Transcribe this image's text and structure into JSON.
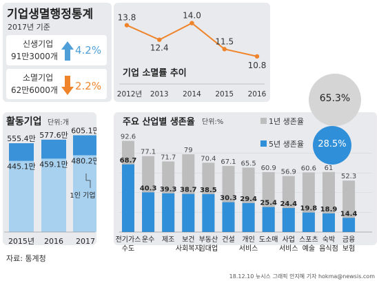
{
  "header": {
    "title": "기업생멸행정통계",
    "subtitle": "2017년 기준"
  },
  "summary": {
    "new": {
      "label": "신생기업",
      "count": "91만3000개",
      "rate": "4.2%"
    },
    "closed": {
      "label": "소멸기업",
      "count": "62만6000개",
      "rate": "2.2%"
    }
  },
  "colors": {
    "up": "#4e9fd8",
    "down": "#f0842a",
    "line": "#f0842a",
    "gray_bar": "#bdbdbd",
    "blue_bar": "#2f8fd8",
    "light_blue": "#a8d1ef",
    "mid_blue": "#3a93d8",
    "panel": "#e8eaee"
  },
  "chart_data": [
    {
      "type": "line",
      "title": "기업 소멸률 추이",
      "x": [
        "2012년",
        "2013",
        "2014",
        "2015",
        "2016"
      ],
      "values": [
        13.8,
        12.4,
        14.0,
        11.5,
        10.8
      ],
      "labels": [
        "13.8",
        "12.4",
        "14.0",
        "11.5",
        "10.8"
      ],
      "ylim": [
        10,
        14.5
      ]
    },
    {
      "type": "bar",
      "title": "활동기업",
      "unit": "단위:개",
      "categories": [
        "2015년",
        "2016",
        "2017"
      ],
      "series": [
        {
          "values": [
            555.4,
            577.6,
            605.1
          ],
          "labels": [
            "555.4만",
            "577.6만",
            "605.1만"
          ]
        },
        {
          "values": [
            445.1,
            459.1,
            480.2
          ],
          "labels": [
            "445.1만",
            "459.1만",
            "480.2만"
          ]
        }
      ],
      "annotation": "1인 기업",
      "ylim": [
        0,
        620
      ]
    },
    {
      "type": "bar",
      "title": "주요 산업별 생존율",
      "unit": "단위:%",
      "categories": [
        [
          "전기가스",
          "수도"
        ],
        [
          "운수"
        ],
        [
          "제조"
        ],
        [
          "보건",
          "사회복지"
        ],
        [
          "부동산",
          "임대업"
        ],
        [
          "건설"
        ],
        [
          "개인",
          "서비스"
        ],
        [
          "도소매"
        ],
        [
          "사업",
          "서비스"
        ],
        [
          "스포츠",
          "예술"
        ],
        [
          "숙박",
          "음식점"
        ],
        [
          "금융",
          "보험"
        ]
      ],
      "series": [
        {
          "name": "1년 생존율",
          "values": [
            92.6,
            77.1,
            71.7,
            79,
            70.4,
            67.1,
            65.5,
            60.9,
            56.9,
            60.6,
            61,
            52.3
          ],
          "labels": [
            "92.6",
            "77.1",
            "71.7",
            "79",
            "70.4",
            "67.1",
            "65.5",
            "60.9",
            "56.9",
            "60.6",
            "61",
            "52.3"
          ],
          "avg": "65.3%"
        },
        {
          "name": "5년 생존율",
          "values": [
            68.7,
            40.3,
            39.3,
            38.7,
            38.5,
            30.3,
            29.4,
            25.4,
            24.4,
            19.8,
            18.9,
            14.4
          ],
          "labels": [
            "68.7",
            "40.3",
            "39.3",
            "38.7",
            "38.5",
            "30.3",
            "29.4",
            "25.4",
            "24.4",
            "19.8",
            "18.9",
            "14.4"
          ],
          "avg": "28.5%"
        }
      ],
      "ylim": [
        0,
        100
      ]
    }
  ],
  "footer": {
    "source": "자료: 통계청",
    "credit": "18.12.10 뉴시스 그래픽 안지혜 기자 hokma@newsis.com"
  }
}
